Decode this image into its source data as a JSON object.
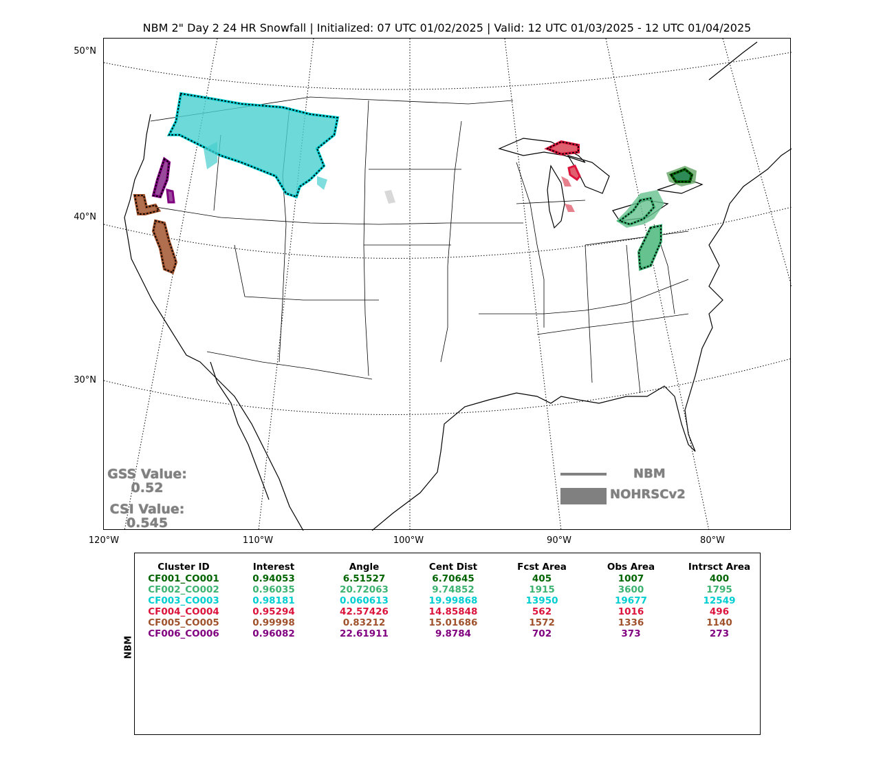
{
  "title": "NBM 2\" Day 2 24 HR Snowfall | Initialized: 07 UTC 01/02/2025 | Valid: 12 UTC 01/03/2025 - 12 UTC 01/04/2025",
  "map": {
    "lat_labels": [
      "50°N",
      "40°N",
      "30°N"
    ],
    "lon_labels": [
      "120°W",
      "110°W",
      "100°W",
      "90°W",
      "80°W"
    ]
  },
  "stats": {
    "gss_label": "GSS Value:",
    "gss_value": "0.52",
    "csi_label": "CSI Value:",
    "csi_value": "0.545"
  },
  "legend": {
    "forecast_label": "NBM",
    "observed_label": "NOHRSCv2",
    "color": "#808080"
  },
  "table": {
    "row_label": "NBM",
    "headers": [
      "Cluster ID",
      "Interest",
      "Angle",
      "Cent Dist",
      "Fcst Area",
      "Obs Area",
      "Intrsct Area"
    ],
    "rows": [
      {
        "color": "#006400",
        "cells": [
          "CF001_CO001",
          "0.94053",
          "6.51527",
          "6.70645",
          "405",
          "1007",
          "400"
        ]
      },
      {
        "color": "#3cb371",
        "cells": [
          "CF002_CO002",
          "0.96035",
          "20.72063",
          "9.74852",
          "1915",
          "3600",
          "1795"
        ]
      },
      {
        "color": "#00ced1",
        "cells": [
          "CF003_CO003",
          "0.98181",
          "0.060613",
          "19.99868",
          "13950",
          "19677",
          "12549"
        ]
      },
      {
        "color": "#dc143c",
        "cells": [
          "CF004_CO004",
          "0.95294",
          "42.57426",
          "14.85848",
          "562",
          "1016",
          "496"
        ]
      },
      {
        "color": "#a0522d",
        "cells": [
          "CF005_CO005",
          "0.99998",
          "0.83212",
          "15.01686",
          "1572",
          "1336",
          "1140"
        ]
      },
      {
        "color": "#800080",
        "cells": [
          "CF006_CO006",
          "0.96082",
          "22.61911",
          "9.8784",
          "702",
          "373",
          "273"
        ]
      }
    ]
  },
  "clusters": [
    {
      "id": "CF001_CO001",
      "color": "#006400",
      "fill": "#2e8b57"
    },
    {
      "id": "CF002_CO002",
      "color": "#3cb371",
      "fill": "#66c28f"
    },
    {
      "id": "CF003_CO003",
      "color": "#00ced1",
      "fill": "#48cfcf"
    },
    {
      "id": "CF004_CO004",
      "color": "#dc143c",
      "fill": "#e06070"
    },
    {
      "id": "CF005_CO005",
      "color": "#a0522d",
      "fill": "#b07050"
    },
    {
      "id": "CF006_CO006",
      "color": "#800080",
      "fill": "#9a4a9a"
    }
  ]
}
